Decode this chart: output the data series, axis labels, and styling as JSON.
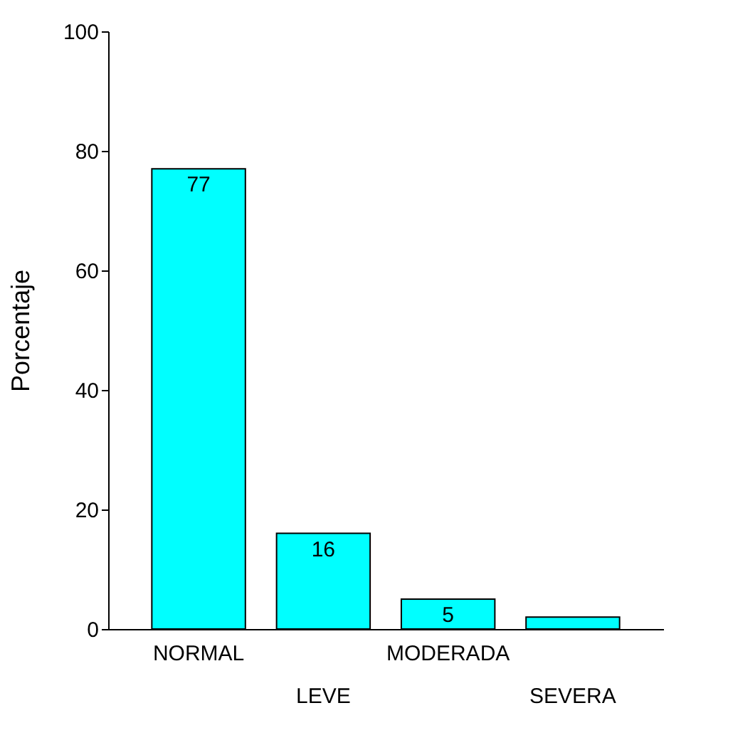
{
  "chart_data": {
    "type": "bar",
    "ylabel": "Porcentaje",
    "categories": [
      "NORMAL",
      "LEVE",
      "MODERADA",
      "SEVERA"
    ],
    "values": [
      77,
      16,
      5,
      2
    ],
    "value_labels": [
      "77",
      "16",
      "5",
      null
    ],
    "color": "#00ffff",
    "ylim": [
      0,
      100
    ],
    "yticks": [
      0,
      20,
      40,
      60,
      80,
      100
    ],
    "grid": false
  }
}
